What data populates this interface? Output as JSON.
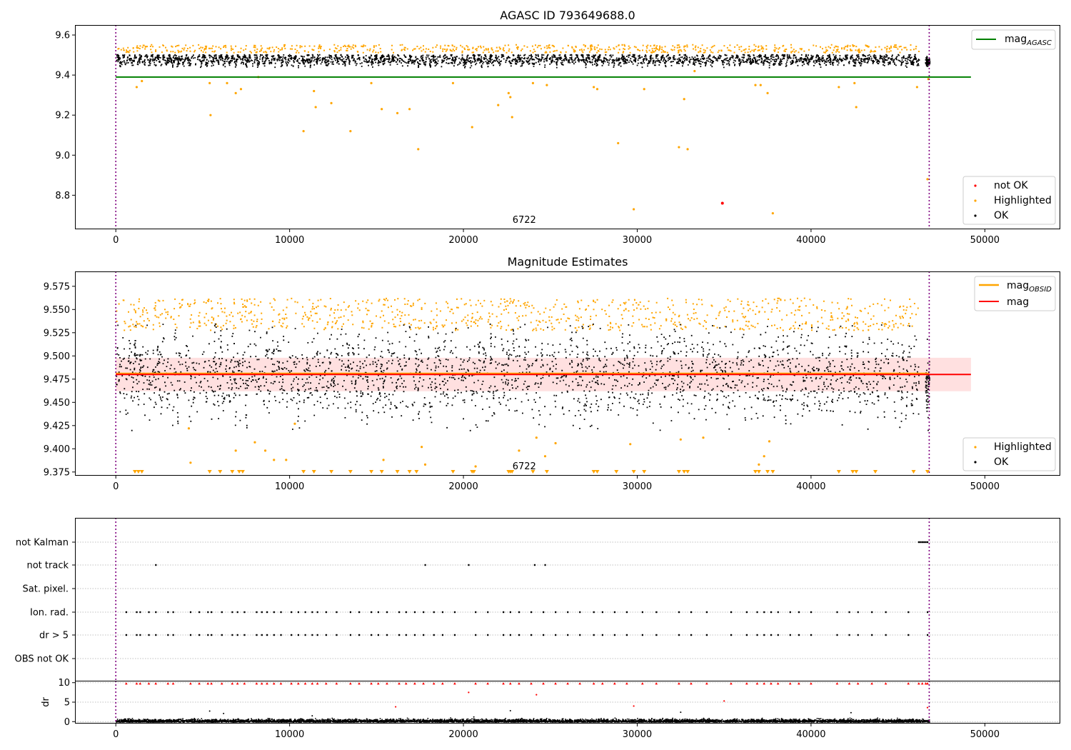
{
  "chart_data": [
    {
      "id": "top",
      "type": "scatter",
      "title": "AGASC ID 793649688.0",
      "xlim": [
        -2350,
        54300
      ],
      "ylim": [
        8.63,
        9.65
      ],
      "xticks": [
        0,
        10000,
        20000,
        30000,
        40000,
        50000
      ],
      "xtick_labels": [
        "0",
        "10000",
        "20000",
        "30000",
        "40000",
        "50000"
      ],
      "yticks": [
        8.8,
        9.0,
        9.2,
        9.4,
        9.6
      ],
      "ytick_labels": [
        "8.8",
        "9.0",
        "9.2",
        "9.4",
        "9.6"
      ],
      "annotation": {
        "text": "6722",
        "x": 23500
      },
      "obs_boundaries": [
        0,
        46800
      ],
      "hlines": [
        {
          "name": "mag_AGASC",
          "y": 9.39,
          "x": [
            0,
            49200
          ],
          "color": "#008000"
        }
      ],
      "band": {
        "center": 9.48,
        "amplitude": 0.025,
        "min": 9.44,
        "max": 9.505
      },
      "series": [
        {
          "name": "not OK",
          "color": "#ff0000",
          "points": [
            [
              34900,
              8.76
            ]
          ]
        },
        {
          "name": "Highlighted",
          "color": "#ffa500",
          "points": [
            [
              1200,
              9.34
            ],
            [
              1500,
              9.37
            ],
            [
              5400,
              9.36
            ],
            [
              5450,
              9.2
            ],
            [
              6400,
              9.36
            ],
            [
              6900,
              9.31
            ],
            [
              7200,
              9.33
            ],
            [
              8200,
              9.39
            ],
            [
              10800,
              9.12
            ],
            [
              11400,
              9.32
            ],
            [
              11500,
              9.24
            ],
            [
              12400,
              9.26
            ],
            [
              13500,
              9.12
            ],
            [
              14700,
              9.36
            ],
            [
              15300,
              9.23
            ],
            [
              16200,
              9.21
            ],
            [
              16900,
              9.23
            ],
            [
              17400,
              9.03
            ],
            [
              19400,
              9.36
            ],
            [
              20500,
              9.14
            ],
            [
              22000,
              9.25
            ],
            [
              22600,
              9.31
            ],
            [
              22700,
              9.29
            ],
            [
              22800,
              9.19
            ],
            [
              24000,
              9.36
            ],
            [
              24800,
              9.35
            ],
            [
              27500,
              9.34
            ],
            [
              27700,
              9.33
            ],
            [
              28900,
              9.06
            ],
            [
              29800,
              8.73
            ],
            [
              30400,
              9.33
            ],
            [
              32400,
              9.04
            ],
            [
              32700,
              9.28
            ],
            [
              32900,
              9.03
            ],
            [
              33300,
              9.42
            ],
            [
              36800,
              9.35
            ],
            [
              37100,
              9.35
            ],
            [
              37500,
              9.31
            ],
            [
              37800,
              8.71
            ],
            [
              41600,
              9.34
            ],
            [
              42500,
              9.36
            ],
            [
              42600,
              9.24
            ],
            [
              46100,
              9.34
            ],
            [
              46700,
              8.88
            ],
            [
              46750,
              9.38
            ]
          ]
        },
        {
          "name": "OK",
          "color": "#000000",
          "points": []
        }
      ],
      "legends": [
        {
          "position": "upper right",
          "entries": [
            {
              "label": "mag",
              "sub": "AGASC",
              "color": "#008000",
              "kind": "line"
            }
          ]
        },
        {
          "position": "lower right",
          "entries": [
            {
              "label": "not OK",
              "color": "#ff0000",
              "kind": "dot"
            },
            {
              "label": "Highlighted",
              "color": "#ffa500",
              "kind": "dot"
            },
            {
              "label": "OK",
              "color": "#000000",
              "kind": "dot"
            }
          ]
        }
      ]
    },
    {
      "id": "mid",
      "type": "scatter",
      "title": "Magnitude Estimates",
      "xlim": [
        -2350,
        54300
      ],
      "ylim": [
        9.371,
        9.591
      ],
      "xticks": [
        0,
        10000,
        20000,
        30000,
        40000,
        50000
      ],
      "xtick_labels": [
        "0",
        "10000",
        "20000",
        "30000",
        "40000",
        "50000"
      ],
      "yticks": [
        9.375,
        9.4,
        9.425,
        9.45,
        9.475,
        9.5,
        9.525,
        9.55,
        9.575
      ],
      "ytick_labels": [
        "9.375",
        "9.400",
        "9.425",
        "9.450",
        "9.475",
        "9.500",
        "9.525",
        "9.550",
        "9.575"
      ],
      "annotation": {
        "text": "6722",
        "x": 23500
      },
      "obs_boundaries": [
        0,
        46800
      ],
      "shaded_band": {
        "y": [
          9.462,
          9.498
        ],
        "x": [
          0,
          49200
        ],
        "color": "#ff0000",
        "alpha": 0.12
      },
      "hlines": [
        {
          "name": "mag_OBSID",
          "y": 9.481,
          "x": [
            0,
            46800
          ],
          "color": "#ffa500"
        },
        {
          "name": "mag",
          "y": 9.48,
          "x": [
            0,
            49200
          ],
          "color": "#ff0000"
        }
      ],
      "band": {
        "center": 9.48,
        "amplitude": 0.03,
        "min": 9.42,
        "max": 9.535
      },
      "series": [
        {
          "name": "Highlighted",
          "color": "#ffa500",
          "points": [
            [
              4300,
              9.385
            ],
            [
              6900,
              9.398
            ],
            [
              8000,
              9.407
            ],
            [
              8600,
              9.398
            ],
            [
              9100,
              9.388
            ],
            [
              9800,
              9.388
            ],
            [
              15400,
              9.388
            ],
            [
              17600,
              9.402
            ],
            [
              17800,
              9.383
            ],
            [
              20700,
              9.381
            ],
            [
              23200,
              9.398
            ],
            [
              24200,
              9.412
            ],
            [
              24700,
              9.392
            ],
            [
              25300,
              9.406
            ],
            [
              29600,
              9.405
            ],
            [
              32500,
              9.41
            ],
            [
              33800,
              9.412
            ],
            [
              37000,
              9.383
            ],
            [
              37300,
              9.392
            ],
            [
              37600,
              9.408
            ],
            [
              4200,
              9.422
            ],
            [
              10300,
              9.427
            ]
          ]
        },
        {
          "name": "OK",
          "color": "#000000",
          "points": []
        }
      ],
      "clipped_markers_x": [
        1100,
        1300,
        1500,
        5400,
        6000,
        6700,
        7100,
        7300,
        10800,
        11400,
        12400,
        13500,
        14700,
        15300,
        16200,
        16900,
        17300,
        19400,
        20500,
        20600,
        22600,
        22700,
        22800,
        24000,
        24800,
        27500,
        27700,
        28800,
        29800,
        30400,
        32400,
        32700,
        32900,
        36800,
        37000,
        37500,
        37800,
        41600,
        42400,
        42600,
        43700,
        45900,
        46700
      ],
      "legends": [
        {
          "position": "upper right",
          "entries": [
            {
              "label": "mag",
              "sub": "OBSID",
              "color": "#ffa500",
              "kind": "line"
            },
            {
              "label": "mag",
              "sub": "",
              "color": "#ff0000",
              "kind": "line"
            }
          ]
        },
        {
          "position": "lower right",
          "entries": [
            {
              "label": "Highlighted",
              "color": "#ffa500",
              "kind": "dot"
            },
            {
              "label": "OK",
              "color": "#000000",
              "kind": "dot"
            }
          ]
        }
      ]
    },
    {
      "id": "flags",
      "type": "scatter",
      "xlim": [
        -2350,
        54300
      ],
      "categories": [
        "not Kalman",
        "not track",
        "Sat. pixel.",
        "Ion. rad.",
        "dr > 5",
        "OBS not OK"
      ],
      "obs_boundaries": [
        0,
        46800
      ],
      "points": {
        "not Kalman": {
          "x": [
            46200,
            46300,
            46400,
            46500,
            46600,
            46700
          ]
        },
        "not track": {
          "x": [
            2300,
            17800,
            20300,
            24100,
            24700
          ]
        },
        "Ion. rad.": {
          "x": [
            600,
            1200,
            1400,
            1900,
            2300,
            3000,
            3300,
            4300,
            4800,
            5300,
            5500,
            6100,
            6700,
            7000,
            7400,
            8100,
            8400,
            8700,
            9100,
            9500,
            10100,
            10500,
            10900,
            11300,
            11600,
            12100,
            12700,
            13500,
            14000,
            14700,
            15100,
            15600,
            16300,
            16700,
            17200,
            17700,
            18300,
            18800,
            19500,
            20700,
            21400,
            22300,
            22700,
            23200,
            23900,
            24600,
            25300,
            26000,
            26700,
            27500,
            28000,
            28700,
            29400,
            30300,
            31100,
            32400,
            33100,
            34000,
            35400,
            36300,
            36900,
            37300,
            37700,
            38100,
            38800,
            39300,
            40000,
            41500,
            42200,
            42700,
            43500,
            44300,
            45600,
            46700
          ]
        },
        "dr > 5": {
          "x": [
            600,
            1200,
            1400,
            1900,
            2300,
            3000,
            3300,
            4300,
            4800,
            5300,
            5500,
            6100,
            6700,
            7000,
            7400,
            8100,
            8400,
            8700,
            9100,
            9500,
            10100,
            10500,
            10900,
            11300,
            11600,
            12100,
            12700,
            13500,
            14000,
            14700,
            15100,
            15600,
            16300,
            16700,
            17200,
            17700,
            18300,
            18800,
            19500,
            20700,
            21400,
            22300,
            22700,
            23200,
            23900,
            24600,
            25300,
            26000,
            26700,
            27500,
            28000,
            28700,
            29400,
            30300,
            31100,
            32400,
            33100,
            34000,
            35400,
            36300,
            36900,
            37300,
            37700,
            38100,
            38800,
            39300,
            40000,
            41500,
            42200,
            42700,
            43500,
            44300,
            45600,
            46700
          ]
        }
      }
    },
    {
      "id": "dr",
      "type": "scatter",
      "ylabel": "dr",
      "xlim": [
        -2350,
        54300
      ],
      "ylim": [
        -0.5,
        10.5
      ],
      "xticks": [
        0,
        10000,
        20000,
        30000,
        40000,
        50000
      ],
      "xtick_labels": [
        "0",
        "10000",
        "20000",
        "30000",
        "40000",
        "50000"
      ],
      "yticks": [
        0,
        5,
        10
      ],
      "ytick_labels": [
        "0",
        "5",
        "10"
      ],
      "obs_boundaries": [
        0,
        46800
      ],
      "series": [
        {
          "name": "clipped",
          "color": "#ff0000",
          "marker": "triangle",
          "y": 9.8,
          "x": [
            600,
            1200,
            1400,
            1900,
            2300,
            3000,
            3300,
            4300,
            4800,
            5300,
            5500,
            6100,
            6700,
            7000,
            7400,
            8100,
            8400,
            8700,
            9100,
            9500,
            10100,
            10500,
            10900,
            11300,
            11600,
            12100,
            12700,
            13500,
            14000,
            14700,
            15100,
            15600,
            16300,
            16700,
            17200,
            17700,
            18300,
            18800,
            19500,
            20700,
            21400,
            22300,
            22700,
            23200,
            23900,
            24600,
            25300,
            26000,
            26700,
            27500,
            28000,
            28700,
            29400,
            30300,
            31100,
            32400,
            33100,
            34000,
            35400,
            36300,
            36900,
            37300,
            37700,
            38100,
            38800,
            39300,
            40000,
            41500,
            42200,
            42700,
            43500,
            44300,
            45600,
            46200,
            46400,
            46600,
            46700
          ]
        },
        {
          "name": "high dr",
          "color": "#ff0000",
          "points": [
            [
              16100,
              3.8
            ],
            [
              20300,
              7.5
            ],
            [
              24200,
              6.9
            ],
            [
              29800,
              4.0
            ],
            [
              35000,
              5.3
            ],
            [
              46700,
              3.6
            ]
          ]
        },
        {
          "name": "ok dr",
          "color": "#000000",
          "points": [
            [
              5400,
              2.7
            ],
            [
              6200,
              2.1
            ],
            [
              22700,
              2.8
            ],
            [
              32500,
              2.4
            ],
            [
              42300,
              2.3
            ],
            [
              11300,
              1.5
            ],
            [
              20600,
              1.2
            ]
          ]
        }
      ]
    }
  ]
}
